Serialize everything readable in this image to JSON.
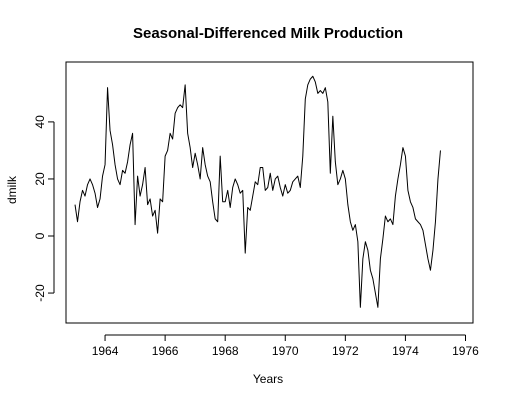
{
  "chart_data": {
    "type": "line",
    "title": "Seasonal-Differenced Milk Production",
    "xlabel": "Years",
    "ylabel": "dmilk",
    "xlim": [
      1962.7,
      1976.25
    ],
    "ylim": [
      -30.5,
      61
    ],
    "x_ticks": [
      1964,
      1966,
      1968,
      1970,
      1972,
      1974,
      1976
    ],
    "x_tick_labels": [
      "1964",
      "1966",
      "1968",
      "1970",
      "1972",
      "1974",
      "1976"
    ],
    "y_ticks": [
      -20,
      0,
      20,
      40
    ],
    "y_tick_labels": [
      "-20",
      "0",
      "20",
      "40"
    ],
    "grid": false,
    "series": [
      {
        "color": "#000000",
        "start_year": 1963.0,
        "frequency": 12,
        "values": [
          11,
          5,
          12,
          16,
          14,
          18,
          20,
          18,
          15,
          10,
          13,
          21,
          25,
          52,
          37,
          32,
          25,
          20,
          18,
          23,
          22,
          26,
          32,
          36,
          4,
          21,
          14,
          18,
          24,
          11,
          13,
          7,
          9,
          1,
          13,
          12,
          28,
          30,
          36,
          34,
          43,
          45,
          46,
          45,
          53,
          36,
          31,
          24,
          29,
          25,
          20,
          31,
          25,
          21,
          19,
          12,
          6,
          5,
          28,
          12,
          12,
          16,
          10,
          17,
          20,
          18,
          15,
          16,
          -6,
          10,
          9,
          14,
          19,
          18,
          24,
          24,
          16,
          17,
          22,
          16,
          20,
          21,
          17,
          14,
          18,
          15,
          16,
          19,
          20,
          21,
          17,
          28,
          48,
          53,
          55,
          56,
          54,
          50,
          51,
          50,
          52,
          47,
          22,
          42,
          26,
          18,
          20,
          23,
          20,
          11,
          5,
          2,
          4,
          -2,
          -25,
          -8,
          -2,
          -5,
          -12,
          -15,
          -20,
          -25,
          -8,
          -1,
          7,
          5,
          6,
          4,
          14,
          20,
          25,
          31,
          28,
          16,
          12,
          10,
          6,
          5,
          4,
          2,
          -3,
          -8,
          -12,
          -5,
          5,
          20,
          30
        ]
      }
    ]
  }
}
